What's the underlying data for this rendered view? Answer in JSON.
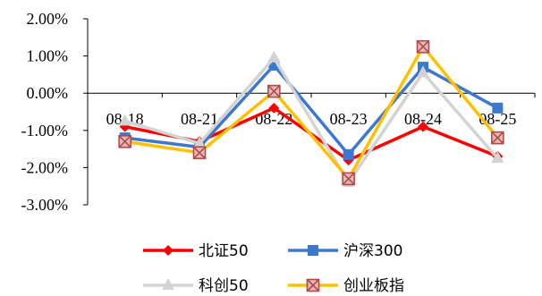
{
  "chart_data": {
    "type": "line",
    "categories": [
      "08-18",
      "08-21",
      "08-22",
      "08-23",
      "08-24",
      "08-25"
    ],
    "ylim": [
      -3.0,
      2.0
    ],
    "yticks": [
      "2.00%",
      "1.00%",
      "0.00%",
      "-1.00%",
      "-2.00%",
      "-3.00%"
    ],
    "grid": false,
    "legend_position": "bottom",
    "series": [
      {
        "name": "北证50",
        "color": "#ff0000",
        "marker": "diamond",
        "values": [
          -0.9,
          -1.3,
          -0.4,
          -1.8,
          -0.9,
          -1.7
        ]
      },
      {
        "name": "沪深300",
        "color": "#3c78d0",
        "marker": "square",
        "values": [
          -1.2,
          -1.45,
          0.75,
          -1.65,
          0.7,
          -0.4
        ]
      },
      {
        "name": "科创50",
        "color": "#d3d3d3",
        "marker": "triangle",
        "values": [
          -0.75,
          -1.35,
          0.95,
          -2.4,
          0.55,
          -1.75
        ]
      },
      {
        "name": "创业板指",
        "color": "#ffc000",
        "marker": "xsquare",
        "marker_color": "#b04a48",
        "values": [
          -1.3,
          -1.6,
          0.05,
          -2.3,
          1.25,
          -1.2
        ]
      }
    ]
  }
}
